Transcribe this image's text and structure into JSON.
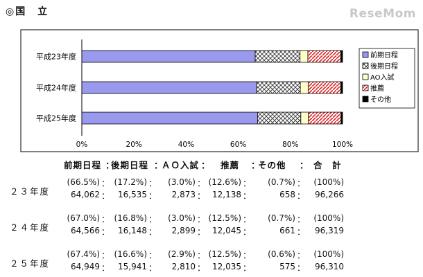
{
  "header": {
    "title": "◎国　立"
  },
  "logo": {
    "text": "ReseMom"
  },
  "chart_data": {
    "type": "bar",
    "orientation": "horizontal",
    "stacked": true,
    "percent_stacked": true,
    "categories": [
      "平成23年度",
      "平成24年度",
      "平成25年度"
    ],
    "series": [
      {
        "name": "前期日程",
        "values": [
          66.5,
          67.0,
          67.4
        ],
        "color": "#9999ee",
        "pattern": "solid"
      },
      {
        "name": "後期日程",
        "values": [
          17.2,
          16.8,
          16.6
        ],
        "color": "#ffffff",
        "pattern": "crosshatch"
      },
      {
        "name": "AO入試",
        "values": [
          3.0,
          3.0,
          2.9
        ],
        "color": "#ffffcc",
        "pattern": "solid"
      },
      {
        "name": "推薦",
        "values": [
          12.6,
          12.5,
          12.5
        ],
        "color": "#e02020",
        "pattern": "diagonal"
      },
      {
        "name": "その他",
        "values": [
          0.7,
          0.7,
          0.6
        ],
        "color": "#000000",
        "pattern": "solid"
      }
    ],
    "xlim": [
      0,
      100
    ],
    "xticks": [
      "0%",
      "20%",
      "40%",
      "60%",
      "80%",
      "100%"
    ],
    "legend": "right",
    "grid": false
  },
  "stats": {
    "headers": [
      "前期日程",
      "：",
      "後期日程",
      "：",
      "ＡＯ入試",
      "：",
      "推薦",
      "：",
      "その他",
      "：",
      "合　計"
    ],
    "rows": [
      {
        "label": "２３年度",
        "percents": [
          "(66.5%)",
          "(17.2%)",
          "(3.0%)",
          "(12.6%)",
          "(0.7%)",
          "(100%)"
        ],
        "counts": [
          "64,062",
          "16,535",
          "2,873",
          "12,138",
          "658",
          "96,266"
        ]
      },
      {
        "label": "２４年度",
        "percents": [
          "(67.0%)",
          "(16.8%)",
          "(3.0%)",
          "(12.5%)",
          "(0.7%)",
          "(100%)"
        ],
        "counts": [
          "64,566",
          "16,148",
          "2,899",
          "12,045",
          "661",
          "96,319"
        ]
      },
      {
        "label": "２５年度",
        "percents": [
          "(67.4%)",
          "(16.6%)",
          "(2.9%)",
          "(12.5%)",
          "(0.6%)",
          "(100%)"
        ],
        "counts": [
          "64,949",
          "15,941",
          "2,810",
          "12,035",
          "575",
          "96,310"
        ]
      }
    ]
  }
}
